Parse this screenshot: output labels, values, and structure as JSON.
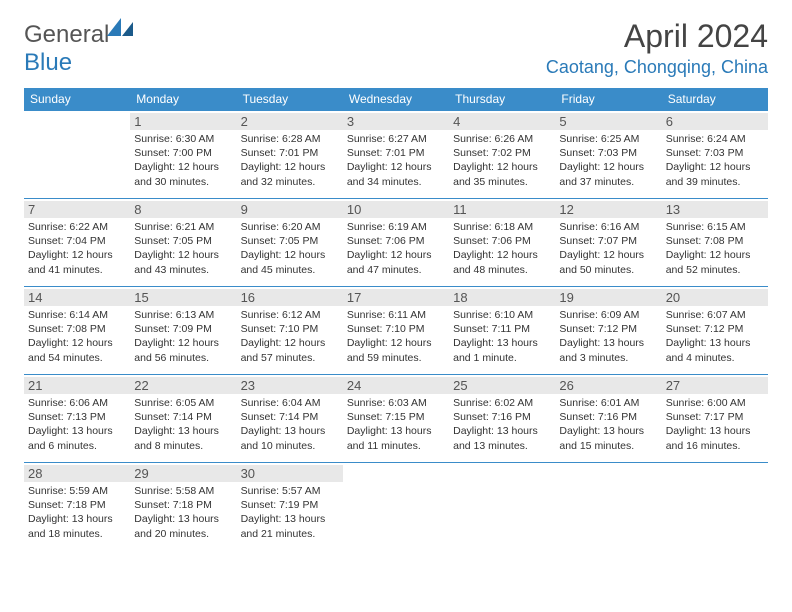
{
  "brand": {
    "part1": "General",
    "part2": "Blue"
  },
  "title": "April 2024",
  "location": "Caotang, Chongqing, China",
  "colors": {
    "header_bg": "#3a8cc9",
    "header_text": "#ffffff",
    "daynum_bg": "#e8e8e8",
    "border": "#3a8cc9",
    "brand_blue": "#2a7ab8"
  },
  "day_headers": [
    "Sunday",
    "Monday",
    "Tuesday",
    "Wednesday",
    "Thursday",
    "Friday",
    "Saturday"
  ],
  "weeks": [
    [
      null,
      {
        "n": "1",
        "sunrise": "6:30 AM",
        "sunset": "7:00 PM",
        "daylight": "12 hours and 30 minutes."
      },
      {
        "n": "2",
        "sunrise": "6:28 AM",
        "sunset": "7:01 PM",
        "daylight": "12 hours and 32 minutes."
      },
      {
        "n": "3",
        "sunrise": "6:27 AM",
        "sunset": "7:01 PM",
        "daylight": "12 hours and 34 minutes."
      },
      {
        "n": "4",
        "sunrise": "6:26 AM",
        "sunset": "7:02 PM",
        "daylight": "12 hours and 35 minutes."
      },
      {
        "n": "5",
        "sunrise": "6:25 AM",
        "sunset": "7:03 PM",
        "daylight": "12 hours and 37 minutes."
      },
      {
        "n": "6",
        "sunrise": "6:24 AM",
        "sunset": "7:03 PM",
        "daylight": "12 hours and 39 minutes."
      }
    ],
    [
      {
        "n": "7",
        "sunrise": "6:22 AM",
        "sunset": "7:04 PM",
        "daylight": "12 hours and 41 minutes."
      },
      {
        "n": "8",
        "sunrise": "6:21 AM",
        "sunset": "7:05 PM",
        "daylight": "12 hours and 43 minutes."
      },
      {
        "n": "9",
        "sunrise": "6:20 AM",
        "sunset": "7:05 PM",
        "daylight": "12 hours and 45 minutes."
      },
      {
        "n": "10",
        "sunrise": "6:19 AM",
        "sunset": "7:06 PM",
        "daylight": "12 hours and 47 minutes."
      },
      {
        "n": "11",
        "sunrise": "6:18 AM",
        "sunset": "7:06 PM",
        "daylight": "12 hours and 48 minutes."
      },
      {
        "n": "12",
        "sunrise": "6:16 AM",
        "sunset": "7:07 PM",
        "daylight": "12 hours and 50 minutes."
      },
      {
        "n": "13",
        "sunrise": "6:15 AM",
        "sunset": "7:08 PM",
        "daylight": "12 hours and 52 minutes."
      }
    ],
    [
      {
        "n": "14",
        "sunrise": "6:14 AM",
        "sunset": "7:08 PM",
        "daylight": "12 hours and 54 minutes."
      },
      {
        "n": "15",
        "sunrise": "6:13 AM",
        "sunset": "7:09 PM",
        "daylight": "12 hours and 56 minutes."
      },
      {
        "n": "16",
        "sunrise": "6:12 AM",
        "sunset": "7:10 PM",
        "daylight": "12 hours and 57 minutes."
      },
      {
        "n": "17",
        "sunrise": "6:11 AM",
        "sunset": "7:10 PM",
        "daylight": "12 hours and 59 minutes."
      },
      {
        "n": "18",
        "sunrise": "6:10 AM",
        "sunset": "7:11 PM",
        "daylight": "13 hours and 1 minute."
      },
      {
        "n": "19",
        "sunrise": "6:09 AM",
        "sunset": "7:12 PM",
        "daylight": "13 hours and 3 minutes."
      },
      {
        "n": "20",
        "sunrise": "6:07 AM",
        "sunset": "7:12 PM",
        "daylight": "13 hours and 4 minutes."
      }
    ],
    [
      {
        "n": "21",
        "sunrise": "6:06 AM",
        "sunset": "7:13 PM",
        "daylight": "13 hours and 6 minutes."
      },
      {
        "n": "22",
        "sunrise": "6:05 AM",
        "sunset": "7:14 PM",
        "daylight": "13 hours and 8 minutes."
      },
      {
        "n": "23",
        "sunrise": "6:04 AM",
        "sunset": "7:14 PM",
        "daylight": "13 hours and 10 minutes."
      },
      {
        "n": "24",
        "sunrise": "6:03 AM",
        "sunset": "7:15 PM",
        "daylight": "13 hours and 11 minutes."
      },
      {
        "n": "25",
        "sunrise": "6:02 AM",
        "sunset": "7:16 PM",
        "daylight": "13 hours and 13 minutes."
      },
      {
        "n": "26",
        "sunrise": "6:01 AM",
        "sunset": "7:16 PM",
        "daylight": "13 hours and 15 minutes."
      },
      {
        "n": "27",
        "sunrise": "6:00 AM",
        "sunset": "7:17 PM",
        "daylight": "13 hours and 16 minutes."
      }
    ],
    [
      {
        "n": "28",
        "sunrise": "5:59 AM",
        "sunset": "7:18 PM",
        "daylight": "13 hours and 18 minutes."
      },
      {
        "n": "29",
        "sunrise": "5:58 AM",
        "sunset": "7:18 PM",
        "daylight": "13 hours and 20 minutes."
      },
      {
        "n": "30",
        "sunrise": "5:57 AM",
        "sunset": "7:19 PM",
        "daylight": "13 hours and 21 minutes."
      },
      null,
      null,
      null,
      null
    ]
  ],
  "labels": {
    "sunrise": "Sunrise: ",
    "sunset": "Sunset: ",
    "daylight": "Daylight: "
  }
}
